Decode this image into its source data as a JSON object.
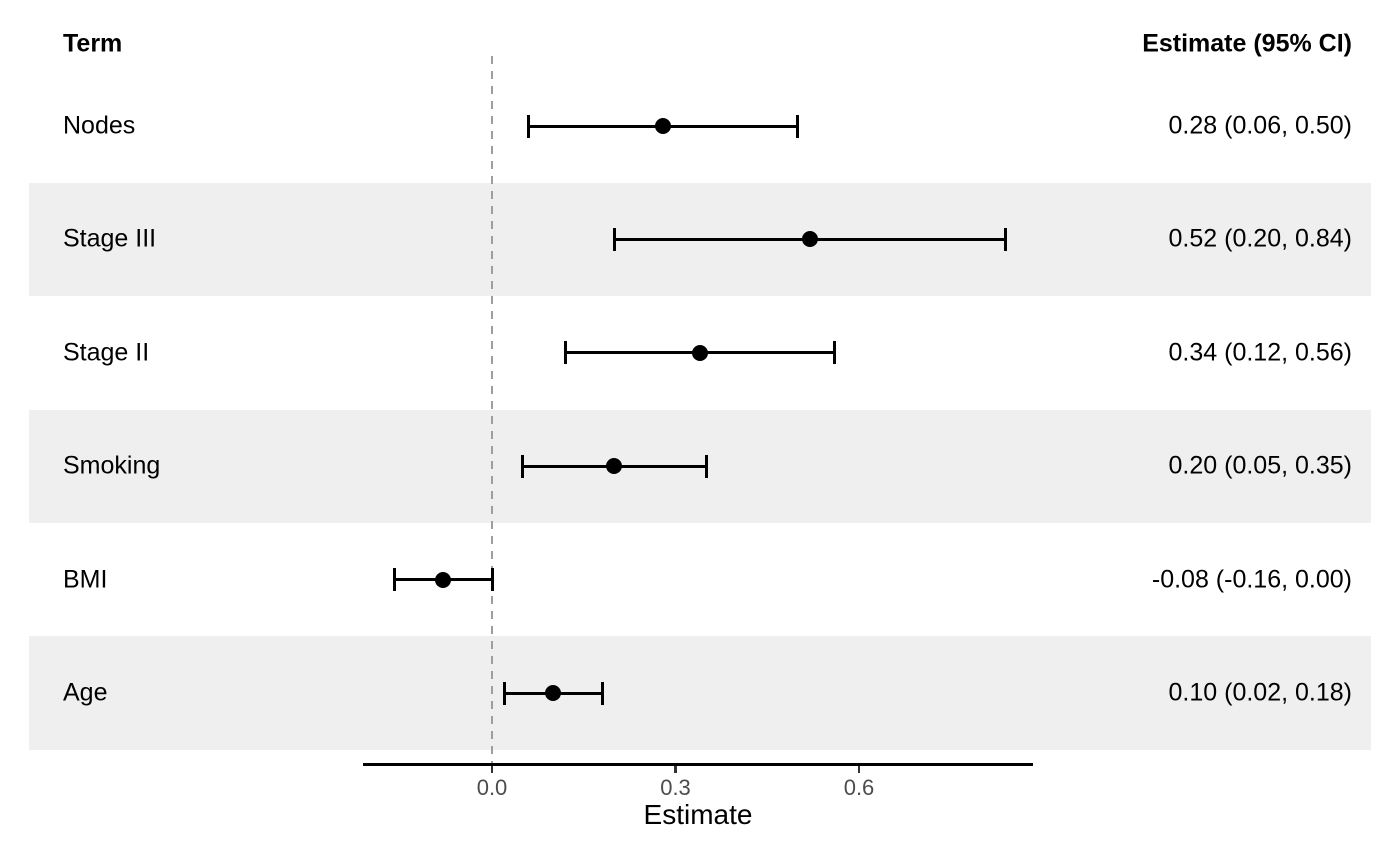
{
  "header": {
    "term_label": "Term",
    "estimate_label": "Estimate (95% CI)"
  },
  "chart_data": {
    "type": "forest",
    "title": "",
    "xlabel": "Estimate",
    "ylabel": "Term",
    "xlim": [
      -0.21,
      0.885
    ],
    "grid": false,
    "zero_reference_line": 0,
    "axis_ticks": [
      {
        "value": 0.0,
        "label": "0.0"
      },
      {
        "value": 0.3,
        "label": "0.3"
      },
      {
        "value": 0.6,
        "label": "0.6"
      }
    ],
    "rows": [
      {
        "term": "Nodes",
        "estimate": 0.28,
        "ci_low": 0.06,
        "ci_high": 0.5,
        "estimate_label": "0.28 (0.06, 0.50)",
        "striped": false
      },
      {
        "term": "Stage III",
        "estimate": 0.52,
        "ci_low": 0.2,
        "ci_high": 0.84,
        "estimate_label": "0.52 (0.20, 0.84)",
        "striped": true
      },
      {
        "term": "Stage II",
        "estimate": 0.34,
        "ci_low": 0.12,
        "ci_high": 0.56,
        "estimate_label": "0.34 (0.12, 0.56)",
        "striped": false
      },
      {
        "term": "Smoking",
        "estimate": 0.2,
        "ci_low": 0.05,
        "ci_high": 0.35,
        "estimate_label": "0.20 (0.05, 0.35)",
        "striped": true
      },
      {
        "term": "BMI",
        "estimate": -0.08,
        "ci_low": -0.16,
        "ci_high": 0.0,
        "estimate_label": "-0.08 (-0.16, 0.00)",
        "striped": false
      },
      {
        "term": "Age",
        "estimate": 0.1,
        "ci_low": 0.02,
        "ci_high": 0.18,
        "estimate_label": "0.10 (0.02, 0.18)",
        "striped": true
      }
    ]
  },
  "colors": {
    "stripe": "#efefef",
    "marker": "#000000",
    "ci": "#000000",
    "zero_line": "#9e9e9e",
    "axis_line": "#000000",
    "tick_mark": "#333333",
    "tick_text": "#4d4d4d",
    "text": "#000000"
  }
}
